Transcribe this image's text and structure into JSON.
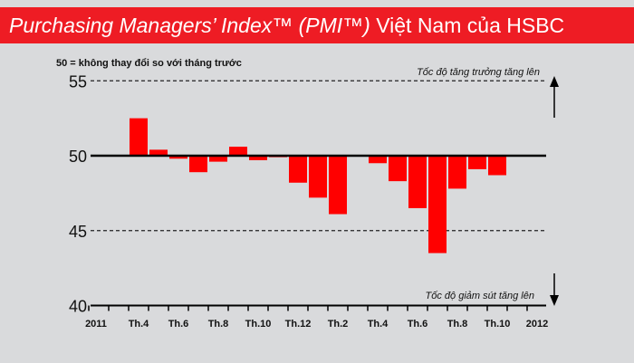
{
  "header": {
    "title_italic": "Purchasing Managers’ Index™ (PMI™)",
    "title_rest": " Việt Nam của HSBC"
  },
  "colors": {
    "title_bg": "#ee1c24",
    "bar": "#ff0000",
    "background": "#d9dadc"
  },
  "chart_data": {
    "type": "bar",
    "title": "Purchasing Managers’ Index™ (PMI™) Việt Nam của HSBC",
    "note": "50 = không thay đổi so với tháng trước",
    "annotation_up": "Tốc độ tăng trưởng tăng lên",
    "annotation_down": "Tốc độ giảm sút tăng lên",
    "baseline": 50,
    "ylim": [
      40,
      55
    ],
    "yticks": [
      "40",
      "45",
      "50",
      "55"
    ],
    "categories": [
      "2011-04",
      "2011-05",
      "2011-06",
      "2011-07",
      "2011-08",
      "2011-09",
      "2011-10",
      "2011-11",
      "2011-12",
      "2012-01",
      "2012-02",
      "2012-03",
      "2012-04",
      "2012-05",
      "2012-06",
      "2012-07",
      "2012-08",
      "2012-09",
      "2012-10"
    ],
    "values": [
      52.5,
      50.4,
      49.8,
      48.9,
      49.6,
      50.6,
      49.7,
      49.9,
      48.2,
      47.2,
      46.1,
      50.0,
      49.5,
      48.3,
      46.5,
      43.5,
      47.8,
      49.1,
      48.7
    ],
    "xtick_labels": [
      {
        "label": "2011",
        "month_index": -2
      },
      {
        "label": "Th.4",
        "month_index": 0
      },
      {
        "label": "Th.6",
        "month_index": 2
      },
      {
        "label": "Th.8",
        "month_index": 4
      },
      {
        "label": "Th.10",
        "month_index": 6
      },
      {
        "label": "Th.12",
        "month_index": 8
      },
      {
        "label": "Th.2",
        "month_index": 10
      },
      {
        "label": "Th.4",
        "month_index": 12
      },
      {
        "label": "Th.6",
        "month_index": 14
      },
      {
        "label": "Th.8",
        "month_index": 16
      },
      {
        "label": "Th.10",
        "month_index": 18
      },
      {
        "label": "2012",
        "month_index": 20
      }
    ]
  }
}
